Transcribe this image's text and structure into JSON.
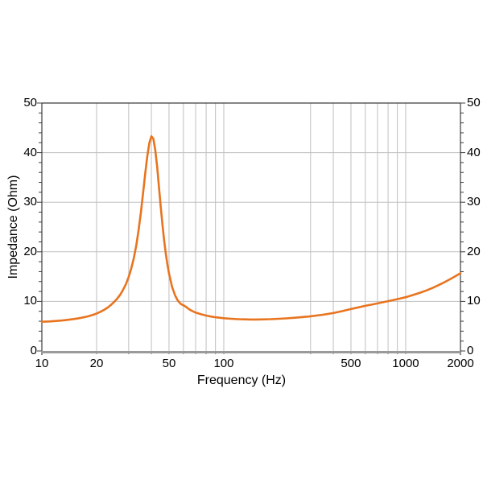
{
  "chart_data": {
    "type": "line",
    "title": "",
    "xlabel": "Frequency (Hz)",
    "ylabel": "Impedance (Ohm)",
    "x_scale": "log",
    "xlim": [
      10,
      2000
    ],
    "ylim": [
      0,
      50
    ],
    "x_tick_values": [
      10,
      20,
      50,
      100,
      500,
      1000,
      2000
    ],
    "x_tick_labels": [
      "10",
      "20",
      "50",
      "100",
      "500",
      "1000",
      "2000"
    ],
    "x_gridlines": [
      20,
      30,
      40,
      50,
      60,
      70,
      80,
      90,
      100,
      300,
      400,
      500,
      600,
      700,
      800,
      900,
      1000,
      2000
    ],
    "y_tick_values": [
      0,
      10,
      20,
      30,
      40,
      50
    ],
    "y_tick_labels": [
      "0",
      "10",
      "20",
      "30",
      "40",
      "50"
    ],
    "y_gridlines": [
      10,
      20,
      30,
      40
    ],
    "y_minor_tick_step": 2,
    "grid_on": true,
    "legend": "none",
    "series": [
      {
        "name": "Impedance",
        "color": "#E8741F",
        "points": [
          [
            10,
            5.9
          ],
          [
            11,
            5.95
          ],
          [
            12,
            6.05
          ],
          [
            13,
            6.15
          ],
          [
            14,
            6.3
          ],
          [
            15,
            6.45
          ],
          [
            16,
            6.6
          ],
          [
            17,
            6.8
          ],
          [
            18,
            7.0
          ],
          [
            19,
            7.25
          ],
          [
            20,
            7.55
          ],
          [
            21,
            7.9
          ],
          [
            22,
            8.3
          ],
          [
            23,
            8.75
          ],
          [
            24,
            9.3
          ],
          [
            25,
            9.9
          ],
          [
            26,
            10.6
          ],
          [
            27,
            11.4
          ],
          [
            28,
            12.4
          ],
          [
            29,
            13.5
          ],
          [
            30,
            14.9
          ],
          [
            31,
            16.6
          ],
          [
            32,
            18.7
          ],
          [
            33,
            21.2
          ],
          [
            34,
            24.3
          ],
          [
            35,
            27.9
          ],
          [
            36,
            31.8
          ],
          [
            37,
            35.8
          ],
          [
            38,
            39.3
          ],
          [
            39,
            42.0
          ],
          [
            40,
            43.3
          ],
          [
            41,
            42.8
          ],
          [
            42,
            40.6
          ],
          [
            43,
            37.2
          ],
          [
            44,
            33.2
          ],
          [
            45,
            29.2
          ],
          [
            46,
            25.5
          ],
          [
            47,
            22.3
          ],
          [
            48,
            19.6
          ],
          [
            49,
            17.4
          ],
          [
            50,
            15.6
          ],
          [
            52,
            12.9
          ],
          [
            54,
            11.2
          ],
          [
            56,
            10.1
          ],
          [
            58,
            9.5
          ],
          [
            60,
            9.2
          ],
          [
            62,
            8.9
          ],
          [
            64,
            8.5
          ],
          [
            66,
            8.2
          ],
          [
            68,
            7.95
          ],
          [
            70,
            7.75
          ],
          [
            75,
            7.4
          ],
          [
            80,
            7.15
          ],
          [
            85,
            6.95
          ],
          [
            90,
            6.8
          ],
          [
            95,
            6.7
          ],
          [
            100,
            6.6
          ],
          [
            110,
            6.5
          ],
          [
            120,
            6.42
          ],
          [
            130,
            6.38
          ],
          [
            140,
            6.35
          ],
          [
            150,
            6.35
          ],
          [
            160,
            6.36
          ],
          [
            180,
            6.42
          ],
          [
            200,
            6.5
          ],
          [
            220,
            6.58
          ],
          [
            250,
            6.72
          ],
          [
            280,
            6.88
          ],
          [
            300,
            7.0
          ],
          [
            350,
            7.3
          ],
          [
            400,
            7.65
          ],
          [
            450,
            8.05
          ],
          [
            500,
            8.45
          ],
          [
            550,
            8.8
          ],
          [
            600,
            9.1
          ],
          [
            650,
            9.35
          ],
          [
            700,
            9.6
          ],
          [
            800,
            10.05
          ],
          [
            900,
            10.45
          ],
          [
            1000,
            10.85
          ],
          [
            1100,
            11.3
          ],
          [
            1200,
            11.75
          ],
          [
            1300,
            12.2
          ],
          [
            1400,
            12.7
          ],
          [
            1500,
            13.2
          ],
          [
            1600,
            13.7
          ],
          [
            1700,
            14.2
          ],
          [
            1800,
            14.7
          ],
          [
            1900,
            15.2
          ],
          [
            2000,
            15.7
          ]
        ]
      }
    ]
  },
  "colors": {
    "curve": "#E8741F",
    "grid": "#BFBFBF",
    "frame": "#3C3C3C",
    "bottom_axis": "#9A9A9A",
    "text": "#000000",
    "background": "#FFFFFF"
  }
}
